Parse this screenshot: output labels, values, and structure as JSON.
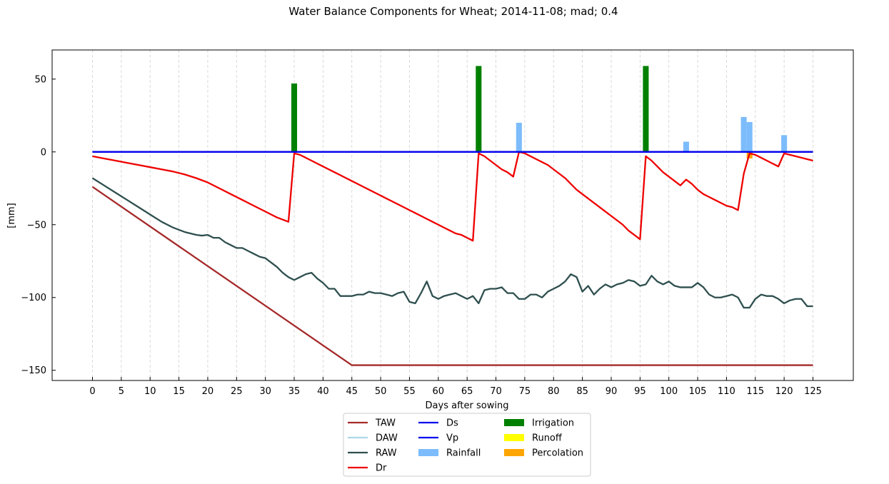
{
  "chart_data": {
    "type": "line",
    "title": "Water Balance Components for Wheat; 2014-11-08; mad; 0.4",
    "xlabel": "Days after sowing",
    "ylabel": "[mm]",
    "xlim": [
      -7,
      132
    ],
    "ylim": [
      -157,
      70
    ],
    "xticks": [
      0,
      5,
      10,
      15,
      20,
      25,
      30,
      35,
      40,
      45,
      50,
      55,
      60,
      65,
      70,
      75,
      80,
      85,
      90,
      95,
      100,
      105,
      110,
      115,
      120,
      125
    ],
    "yticks": [
      50,
      0,
      -50,
      -100,
      -150
    ],
    "ytick_labels": [
      "50",
      "0",
      "−50",
      "−100",
      "−150"
    ],
    "grid": "x dashed",
    "legend_position": "bottom-center",
    "colors": {
      "TAW": "#a52a2a",
      "DAW": "#add8e6",
      "RAW": "#2f4f4f",
      "Dr": "#ee0000",
      "Ds": "#0000ee",
      "Vp": "#0000ee",
      "Rainfall": "#7cbcfc",
      "Irrigation": "#008000",
      "Runoff": "#ffff00",
      "Percolation": "#ffa500"
    },
    "series": [
      {
        "name": "TAW",
        "kind": "line",
        "x": [
          0,
          45,
          125
        ],
        "y": [
          -24,
          -146.5,
          -146.5
        ]
      },
      {
        "name": "DAW",
        "kind": "line",
        "x": [],
        "y": []
      },
      {
        "name": "RAW",
        "kind": "line",
        "x": [
          0,
          2,
          4,
          6,
          8,
          10,
          12,
          14,
          16,
          18,
          19,
          20,
          21,
          22,
          23,
          24,
          25,
          26,
          27,
          28,
          29,
          30,
          31,
          32,
          33,
          34,
          35,
          36,
          37,
          38,
          39,
          40,
          41,
          42,
          43,
          44,
          45,
          46,
          47,
          48,
          49,
          50,
          51,
          52,
          53,
          54,
          55,
          56,
          57,
          58,
          59,
          60,
          61,
          62,
          63,
          64,
          65,
          66,
          67,
          68,
          69,
          70,
          71,
          72,
          73,
          74,
          75,
          76,
          77,
          78,
          79,
          80,
          81,
          82,
          83,
          84,
          85,
          86,
          87,
          88,
          89,
          90,
          91,
          92,
          93,
          94,
          95,
          96,
          97,
          98,
          99,
          100,
          101,
          102,
          103,
          104,
          105,
          106,
          107,
          108,
          109,
          110,
          111,
          112,
          113,
          114,
          115,
          116,
          117,
          118,
          119,
          120,
          121,
          122,
          123,
          124,
          125
        ],
        "y": [
          -18,
          -23,
          -28,
          -33,
          -38,
          -43,
          -48,
          -52,
          -55,
          -57,
          -57.5,
          -57,
          -59,
          -59,
          -62,
          -64,
          -66,
          -66,
          -68,
          -70,
          -72,
          -73,
          -76,
          -79,
          -83,
          -86,
          -88,
          -86,
          -84,
          -83,
          -87,
          -90,
          -94,
          -94,
          -99,
          -99,
          -99,
          -98,
          -98,
          -96,
          -97,
          -97,
          -98,
          -99,
          -97,
          -96,
          -103,
          -104,
          -97,
          -89,
          -99,
          -101,
          -99,
          -98,
          -97,
          -99,
          -101,
          -99,
          -104,
          -95,
          -94,
          -94,
          -93,
          -97,
          -97,
          -101,
          -101,
          -98,
          -98,
          -100,
          -96,
          -94,
          -92,
          -89,
          -84,
          -86,
          -96,
          -92,
          -98,
          -94,
          -91,
          -93,
          -91,
          -90,
          -88,
          -89,
          -92,
          -91,
          -85,
          -89,
          -91,
          -89,
          -92,
          -93,
          -93,
          -93,
          -90,
          -93,
          -98,
          -100,
          -100,
          -99,
          -98,
          -100,
          -107,
          -107,
          -101,
          -98,
          -99,
          -99,
          -101,
          -104,
          -102,
          -101,
          -101,
          -106,
          -106
        ]
      },
      {
        "name": "Dr",
        "kind": "line",
        "x": [
          0,
          2,
          4,
          6,
          8,
          10,
          12,
          14,
          16,
          18,
          20,
          22,
          24,
          26,
          28,
          30,
          32,
          34,
          35,
          36,
          37,
          38,
          39,
          40,
          41,
          42,
          43,
          44,
          45,
          46,
          47,
          48,
          49,
          50,
          51,
          52,
          53,
          54,
          55,
          56,
          57,
          58,
          59,
          60,
          61,
          62,
          63,
          64,
          65,
          66,
          67,
          68,
          69,
          70,
          71,
          72,
          73,
          74,
          75,
          76,
          77,
          78,
          79,
          80,
          81,
          82,
          83,
          84,
          85,
          86,
          87,
          88,
          89,
          90,
          91,
          92,
          93,
          94,
          95,
          96,
          97,
          98,
          99,
          100,
          101,
          102,
          103,
          104,
          105,
          106,
          107,
          108,
          109,
          110,
          111,
          112,
          113,
          114,
          115,
          116,
          117,
          118,
          119,
          120,
          121,
          122,
          123,
          124,
          125
        ],
        "y": [
          -3,
          -4.5,
          -6,
          -7.5,
          -9,
          -10.5,
          -12,
          -13.5,
          -15.5,
          -18,
          -21,
          -25,
          -29,
          -33,
          -37,
          -41,
          -45,
          -48,
          -1,
          -2,
          -4,
          -6,
          -8,
          -10,
          -12,
          -14,
          -16,
          -18,
          -20,
          -22,
          -24,
          -26,
          -28,
          -30,
          -32,
          -34,
          -36,
          -38,
          -40,
          -42,
          -44,
          -46,
          -48,
          -50,
          -52,
          -54,
          -56,
          -57,
          -59,
          -61,
          -1,
          -3,
          -6,
          -9,
          -12,
          -14,
          -17,
          0,
          -1,
          -3,
          -5,
          -7,
          -9,
          -12,
          -15,
          -18,
          -22,
          -26,
          -29,
          -32,
          -35,
          -38,
          -41,
          -44,
          -47,
          -50,
          -54,
          -57,
          -60,
          -3,
          -6,
          -10,
          -14,
          -17,
          -20,
          -23,
          -19,
          -22,
          -26,
          -29,
          -31,
          -33,
          -35,
          -37,
          -38,
          -40,
          -15,
          -1,
          -2,
          -4,
          -6,
          -8,
          -10,
          -1,
          -2,
          -3,
          -4,
          -5,
          -6
        ]
      },
      {
        "name": "Ds",
        "kind": "line",
        "x": [
          0,
          125
        ],
        "y": [
          0,
          0
        ]
      },
      {
        "name": "Vp",
        "kind": "line",
        "x": [
          0,
          125
        ],
        "y": [
          0,
          0
        ]
      },
      {
        "name": "Rainfall",
        "kind": "bar",
        "x": [
          74,
          103,
          113,
          114,
          120
        ],
        "y": [
          20,
          7,
          24,
          20.5,
          11.5
        ]
      },
      {
        "name": "Irrigation",
        "kind": "bar",
        "x": [
          35,
          67,
          96
        ],
        "y": [
          47,
          59,
          59
        ]
      },
      {
        "name": "Runoff",
        "kind": "bar",
        "x": [],
        "y": []
      },
      {
        "name": "Percolation",
        "kind": "bar",
        "x": [
          114
        ],
        "y": [
          -4.5
        ]
      }
    ]
  }
}
